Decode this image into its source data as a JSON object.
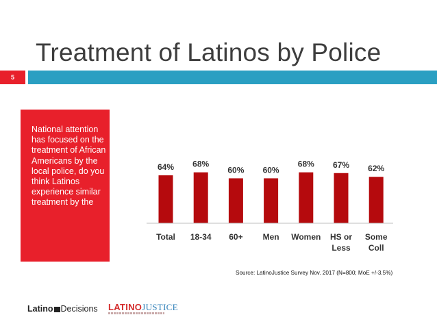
{
  "slide": {
    "title": "Treatment of Latinos by Police",
    "number": "5",
    "callout": "National attention has focused on the treatment of African Americans by the local police, do you think Latinos experience similar treatment by the",
    "source": "Source: LatinoJustice Survey Nov. 2017 (N=800; MoE +/-3.5%)"
  },
  "logos": {
    "latino_decisions": {
      "part1": "Latino",
      "part2": "Decisions"
    },
    "latino_justice": {
      "part1": "LATINO",
      "part2": "JUSTICE"
    }
  },
  "colors": {
    "accent_red": "#e8202b",
    "bar_red": "#b50a0d",
    "band_blue": "#2a9fc2"
  },
  "chart_data": {
    "type": "bar",
    "categories": [
      [
        "Total"
      ],
      [
        "18-34"
      ],
      [
        "60+"
      ],
      [
        "Men"
      ],
      [
        "Women"
      ],
      [
        "HS or",
        "Less"
      ],
      [
        "Some",
        "Coll"
      ]
    ],
    "values": [
      64,
      68,
      60,
      60,
      68,
      67,
      62
    ],
    "value_labels": [
      "64%",
      "68%",
      "60%",
      "60%",
      "68%",
      "67%",
      "62%"
    ],
    "ylim": [
      0,
      100
    ],
    "title": "",
    "xlabel": "",
    "ylabel": "",
    "grid": false,
    "legend": "none"
  }
}
